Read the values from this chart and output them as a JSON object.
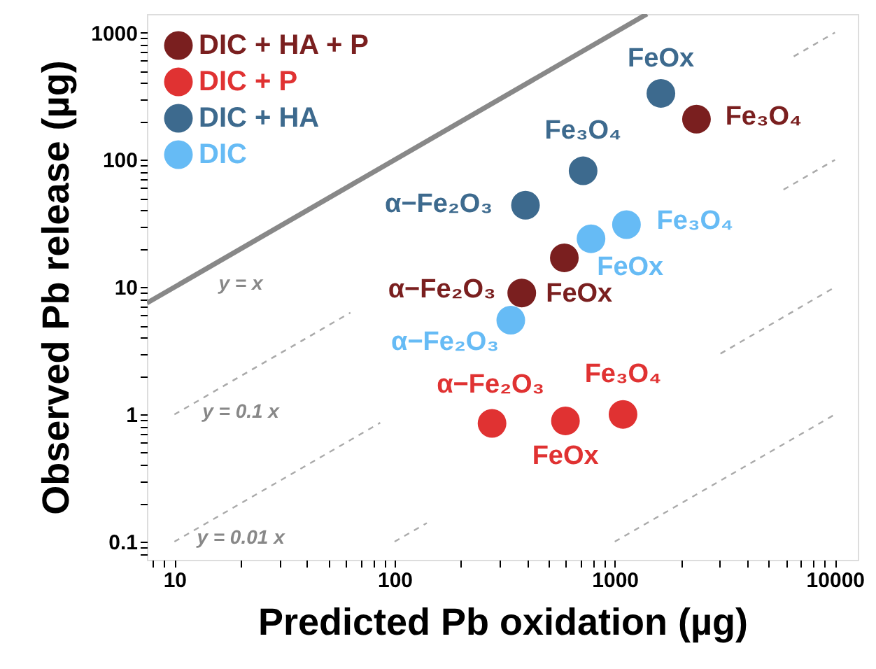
{
  "chart_data": {
    "type": "scatter",
    "xlabel": "Predicted Pb oxidation (µg)",
    "ylabel": "Observed Pb release (µg)",
    "log": "xy",
    "grid": false,
    "legend": "top left",
    "marker": "circle",
    "xlim": [
      7.5,
      12700
    ],
    "ylim": [
      0.072,
      1400
    ],
    "xticks": [
      {
        "value": 8,
        "label": null
      },
      {
        "value": 9,
        "label": null
      },
      10,
      {
        "value": 20,
        "label": null
      },
      {
        "value": 30,
        "label": null
      },
      {
        "value": 40,
        "label": null
      },
      {
        "value": 50,
        "label": null
      },
      {
        "value": 60,
        "label": null
      },
      {
        "value": 70,
        "label": null
      },
      {
        "value": 80,
        "label": null
      },
      {
        "value": 90,
        "label": null
      },
      100,
      {
        "value": 200,
        "label": null
      },
      {
        "value": 300,
        "label": null
      },
      {
        "value": 400,
        "label": null
      },
      {
        "value": 500,
        "label": null
      },
      {
        "value": 600,
        "label": null
      },
      {
        "value": 700,
        "label": null
      },
      {
        "value": 800,
        "label": null
      },
      {
        "value": 900,
        "label": null
      },
      1000,
      {
        "value": 2000,
        "label": null
      },
      {
        "value": 3000,
        "label": null
      },
      {
        "value": 4000,
        "label": null
      },
      {
        "value": 5000,
        "label": null
      },
      {
        "value": 6000,
        "label": null
      },
      {
        "value": 7000,
        "label": null
      },
      {
        "value": 8000,
        "label": null
      },
      {
        "value": 9000,
        "label": null
      },
      10000
    ],
    "yticks": [
      {
        "value": 0.08,
        "label": null
      },
      {
        "value": 0.09,
        "label": null
      },
      0.1,
      {
        "value": 0.2,
        "label": null
      },
      {
        "value": 0.3,
        "label": null
      },
      {
        "value": 0.4,
        "label": null
      },
      {
        "value": 0.5,
        "label": null
      },
      {
        "value": 0.6,
        "label": null
      },
      {
        "value": 0.7,
        "label": null
      },
      {
        "value": 0.8,
        "label": null
      },
      {
        "value": 0.9,
        "label": null
      },
      1,
      {
        "value": 2,
        "label": null
      },
      {
        "value": 3,
        "label": null
      },
      {
        "value": 4,
        "label": null
      },
      {
        "value": 5,
        "label": null
      },
      {
        "value": 6,
        "label": null
      },
      {
        "value": 7,
        "label": null
      },
      {
        "value": 8,
        "label": null
      },
      {
        "value": 9,
        "label": null
      },
      10,
      {
        "value": 20,
        "label": null
      },
      {
        "value": 30,
        "label": null
      },
      {
        "value": 40,
        "label": null
      },
      {
        "value": 50,
        "label": null
      },
      {
        "value": 60,
        "label": null
      },
      {
        "value": 70,
        "label": null
      },
      {
        "value": 80,
        "label": null
      },
      {
        "value": 90,
        "label": null
      },
      100,
      {
        "value": 200,
        "label": null
      },
      {
        "value": 300,
        "label": null
      },
      {
        "value": 400,
        "label": null
      },
      {
        "value": 500,
        "label": null
      },
      {
        "value": 600,
        "label": null
      },
      {
        "value": 700,
        "label": null
      },
      {
        "value": 800,
        "label": null
      },
      {
        "value": 900,
        "label": null
      },
      1000
    ],
    "series": [
      {
        "name": "DIC + HA + P",
        "color": "#7a1f1f",
        "x": [
          2350,
          590,
          378
        ],
        "values": [
          209,
          17,
          9
        ]
      },
      {
        "name": "DIC + P",
        "color": "#e03232",
        "x": [
          277,
          597,
          1090
        ],
        "values": [
          0.85,
          0.89,
          1.0
        ]
      },
      {
        "name": "DIC + HA",
        "color": "#3d6a8e",
        "x": [
          1620,
          718,
          393
        ],
        "values": [
          333,
          82,
          44
        ]
      },
      {
        "name": "DIC",
        "color": "#66bbf5",
        "x": [
          1130,
          780,
          337
        ],
        "values": [
          31,
          24,
          5.5
        ]
      },
      {
        "type": "line",
        "marker": "none",
        "color": "#888888",
        "line_style": "solid",
        "x": [
          7.5,
          1400
        ],
        "values": [
          7.5,
          1400
        ]
      },
      {
        "type": "line",
        "marker": "none",
        "color": "#aaaaaa",
        "line_style": "dashed",
        "x": [
          10,
          63
        ],
        "values": [
          1,
          6.3
        ]
      },
      {
        "type": "line",
        "marker": "none",
        "color": "#aaaaaa",
        "line_style": "dashed",
        "x": [
          6500,
          10000
        ],
        "values": [
          650,
          1000
        ]
      },
      {
        "type": "line",
        "marker": "none",
        "color": "#aaaaaa",
        "line_style": "dashed",
        "x": [
          10,
          86
        ],
        "values": [
          0.1,
          0.86
        ]
      },
      {
        "type": "line",
        "marker": "none",
        "color": "#aaaaaa",
        "line_style": "dashed",
        "x": [
          5840,
          10000
        ],
        "values": [
          58.4,
          100
        ]
      },
      {
        "type": "line",
        "marker": "none",
        "color": "#aaaaaa",
        "line_style": "dashed",
        "x": [
          100,
          140
        ],
        "values": [
          0.1,
          0.14
        ]
      },
      {
        "type": "line",
        "marker": "none",
        "color": "#aaaaaa",
        "line_style": "dashed",
        "x": [
          3020,
          10000
        ],
        "values": [
          3.0,
          10
        ]
      },
      {
        "type": "line",
        "marker": "none",
        "color": "#aaaaaa",
        "line_style": "dashed",
        "x": [
          1000,
          10000
        ],
        "values": [
          0.1,
          1
        ]
      }
    ],
    "annotations": [
      {
        "text": "FeOx",
        "x": 1620,
        "y": 333
      },
      {
        "text": "Fe₃O₄",
        "x": 2350,
        "y": 209
      },
      {
        "text": "Fe₃O₄",
        "x": 718,
        "y": 82
      },
      {
        "text": "α−Fe₂O₃",
        "x": 393,
        "y": 44
      },
      {
        "text": "Fe₃O₄",
        "x": 1130,
        "y": 31
      },
      {
        "text": "FeOx",
        "x": 780,
        "y": 24
      },
      {
        "text": "α−Fe₂O₃",
        "x": 378,
        "y": 9
      },
      {
        "text": "FeOx",
        "x": 378,
        "y": 9
      },
      {
        "text": "α−Fe₂O₃",
        "x": 337,
        "y": 5.5
      },
      {
        "text": "α−Fe₂O₃",
        "x": 277,
        "y": 0.85
      },
      {
        "text": "Fe₃O₄",
        "x": 1090,
        "y": 1.0
      },
      {
        "text": "FeOx",
        "x": 597,
        "y": 0.89
      },
      {
        "text": "y = x",
        "x": 20,
        "y": 20
      },
      {
        "text": "y = 0.1 x",
        "x": 20,
        "y": 2
      },
      {
        "text": "y = 0.01 x",
        "x": 20,
        "y": 0.2
      }
    ]
  }
}
